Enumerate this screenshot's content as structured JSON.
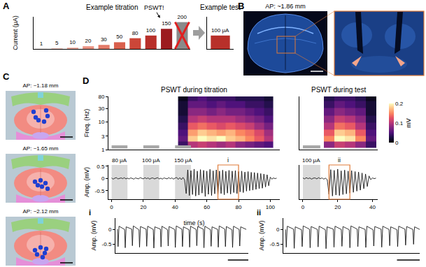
{
  "panel_letters": [
    "A",
    "B",
    "C",
    "D"
  ],
  "chart_data": [
    {
      "type": "bar",
      "title": "Example titration",
      "ylabel": "Current (μA)",
      "categories": [
        null,
        null,
        null,
        null,
        null,
        null,
        null,
        null,
        null,
        null
      ],
      "values": [
        1,
        5,
        10,
        20,
        30,
        50,
        80,
        100,
        150,
        200
      ],
      "colors": [
        "#f6d5cf",
        "#f2c2b8",
        "#eeaa9d",
        "#e99181",
        "#e27a68",
        "#d9604d",
        "#cc4638",
        "#b8302a",
        "#9c1b1f",
        "#8a8a8a"
      ],
      "data_labels": true,
      "ylim": [
        0,
        240
      ],
      "yticks": [],
      "tick_labels": false,
      "annotations": [
        {
          "text": "PSWT!",
          "x": 8
        }
      ],
      "excluded": [
        9
      ]
    },
    {
      "type": "bar",
      "title": "Example test",
      "categories": [
        null
      ],
      "values": [
        100
      ],
      "value_labels": [
        "100 μA"
      ],
      "data_labels": true,
      "color": "#b8302a",
      "ylim": [
        0,
        240
      ],
      "yticks": [],
      "tick_labels": false
    },
    {
      "type": "heatmap",
      "title": "PSWT during titration",
      "ylabel": "Freq. (Hz)",
      "log": "y",
      "x": [
        3,
        9,
        15,
        21,
        27,
        33,
        39,
        45,
        51,
        57,
        63,
        69,
        75,
        81,
        87,
        93,
        99,
        105
      ],
      "y": [
        1.5,
        2.5,
        4,
        7,
        12,
        22,
        45,
        70
      ],
      "z": [
        [
          null,
          null,
          null,
          null,
          null,
          null,
          null,
          0.04,
          0.1,
          0.11,
          0.1,
          0.09,
          0.1,
          0.08,
          0.07,
          0.06,
          0.05,
          null
        ],
        [
          null,
          null,
          null,
          null,
          null,
          null,
          null,
          0.06,
          0.18,
          0.2,
          0.19,
          0.2,
          0.18,
          0.17,
          0.15,
          0.13,
          0.1,
          null
        ],
        [
          null,
          null,
          null,
          null,
          null,
          null,
          null,
          0.05,
          0.16,
          0.18,
          0.17,
          0.16,
          0.17,
          0.15,
          0.14,
          0.12,
          0.09,
          null
        ],
        [
          null,
          null,
          null,
          null,
          null,
          null,
          null,
          0.04,
          0.13,
          0.14,
          0.13,
          0.12,
          0.13,
          0.12,
          0.11,
          0.09,
          0.07,
          null
        ],
        [
          null,
          null,
          null,
          null,
          null,
          null,
          null,
          0.03,
          0.1,
          0.11,
          0.1,
          0.1,
          0.1,
          0.09,
          0.08,
          0.07,
          0.05,
          null
        ],
        [
          null,
          null,
          null,
          null,
          null,
          null,
          null,
          0.02,
          0.08,
          0.08,
          0.07,
          0.08,
          0.07,
          0.07,
          0.06,
          0.05,
          0.04,
          null
        ],
        [
          null,
          null,
          null,
          null,
          null,
          null,
          null,
          0.02,
          0.06,
          0.06,
          0.05,
          0.06,
          0.05,
          0.05,
          0.04,
          0.04,
          0.03,
          null
        ],
        [
          null,
          null,
          null,
          null,
          null,
          null,
          null,
          0.01,
          0.04,
          0.05,
          0.04,
          0.04,
          0.04,
          0.03,
          0.03,
          0.03,
          0.02,
          null
        ]
      ],
      "zlim": [
        0,
        0.2
      ],
      "xlim": [
        -2,
        106
      ],
      "xticks": [],
      "ylim": [
        1,
        80
      ],
      "yticks": [
        1,
        3,
        10,
        30,
        80
      ],
      "tick_labels": "y"
    },
    {
      "type": "heatmap",
      "title": "PSWT during test",
      "log": "y",
      "x": [
        3,
        9,
        15,
        21,
        27,
        33,
        39
      ],
      "y": [
        1.5,
        2.5,
        4,
        7,
        12,
        22,
        45,
        70
      ],
      "z": [
        [
          null,
          null,
          0.08,
          0.11,
          0.1,
          0.08,
          0.04
        ],
        [
          null,
          null,
          0.15,
          0.2,
          0.19,
          0.15,
          0.06
        ],
        [
          null,
          null,
          0.13,
          0.18,
          0.17,
          0.13,
          0.05
        ],
        [
          null,
          null,
          0.1,
          0.14,
          0.13,
          0.1,
          0.04
        ],
        [
          null,
          null,
          0.08,
          0.11,
          0.1,
          0.08,
          0.03
        ],
        [
          null,
          null,
          0.06,
          0.08,
          0.07,
          0.06,
          0.02
        ],
        [
          null,
          null,
          0.04,
          0.06,
          0.05,
          0.04,
          0.02
        ],
        [
          null,
          null,
          0.03,
          0.04,
          0.04,
          0.03,
          0.01
        ]
      ],
      "colorbar": {
        "title": "mV",
        "range": [
          0,
          0.2
        ],
        "ticks": [
          0,
          0.1,
          0.2
        ]
      },
      "xlim": [
        -2,
        43
      ],
      "xticks": [],
      "ylim": [
        1,
        80
      ],
      "yticks": [],
      "tick_labels": false
    },
    {
      "type": "line",
      "xlabel": "time (s)",
      "ylabel": "Amp. (mV)",
      "color": "#000000",
      "x": [
        0,
        1,
        2,
        3,
        4,
        5,
        6,
        7,
        8,
        9,
        10,
        11,
        12,
        13,
        14,
        15,
        16,
        17,
        18,
        19,
        20,
        21,
        22,
        23,
        24,
        25,
        26,
        27,
        28,
        29,
        30,
        31,
        32,
        33,
        34,
        35,
        36,
        37,
        38,
        39,
        40,
        41,
        42,
        43,
        44,
        45,
        46,
        47,
        48,
        49,
        50,
        51,
        52,
        53,
        54,
        55,
        56,
        57,
        58,
        59,
        60,
        61,
        62,
        63,
        64,
        65,
        66,
        67,
        68,
        69,
        70,
        71,
        72,
        73,
        74,
        75,
        76,
        77,
        78,
        79,
        80,
        81,
        82,
        83,
        84,
        85,
        86,
        87,
        88,
        89,
        90,
        91,
        92,
        93,
        94,
        95,
        96,
        97,
        98,
        99,
        100,
        101,
        102,
        103,
        104
      ],
      "values": [
        0.02,
        -0.03,
        0.01,
        0.03,
        -0.02,
        0.0,
        0.02,
        -0.01,
        0.03,
        -0.02,
        0.01,
        -0.02,
        0.02,
        0.0,
        -0.03,
        0.02,
        0.01,
        -0.02,
        0.03,
        0.0,
        -0.02,
        0.03,
        -0.01,
        0.02,
        -0.03,
        0.01,
        0.02,
        -0.02,
        0.0,
        0.03,
        -0.02,
        0.01,
        -0.03,
        0.02,
        0.0,
        -0.02,
        0.03,
        -0.01,
        0.02,
        -0.03,
        0.01,
        0.04,
        -0.04,
        0.03,
        -0.05,
        0.04,
        -0.06,
        -0.62,
        0.35,
        -0.7,
        0.32,
        -0.66,
        0.38,
        -0.72,
        0.3,
        -0.68,
        0.36,
        -0.6,
        0.33,
        -0.74,
        0.3,
        -0.65,
        0.37,
        -0.7,
        0.31,
        -0.63,
        0.35,
        -0.69,
        0.3,
        -0.62,
        0.34,
        -0.67,
        0.29,
        -0.6,
        0.33,
        -0.64,
        0.3,
        -0.58,
        0.32,
        -0.62,
        0.28,
        -0.55,
        0.3,
        -0.58,
        0.26,
        -0.52,
        0.28,
        -0.5,
        0.25,
        -0.48,
        0.24,
        -0.45,
        0.22,
        -0.42,
        0.2,
        -0.4,
        0.18,
        -0.35,
        0.15,
        -0.3,
        0.05,
        -0.03,
        0.02,
        -0.01,
        0.01
      ],
      "xlim": [
        -2,
        106
      ],
      "xticks": [
        0,
        20,
        40,
        60,
        80,
        100
      ],
      "ylim": [
        -0.85,
        0.55
      ],
      "yticks": [
        -0.5,
        0,
        0.5
      ],
      "stim": [
        {
          "x": [
            0,
            10
          ],
          "label": "80 μA"
        },
        {
          "x": [
            20,
            30
          ],
          "label": "100 μA"
        },
        {
          "x": [
            40,
            50
          ],
          "label": "150 μA"
        }
      ]
    },
    {
      "type": "line",
      "color": "#000000",
      "x": [
        0,
        1,
        2,
        3,
        4,
        5,
        6,
        7,
        8,
        9,
        10,
        11,
        12,
        13,
        14,
        15,
        16,
        17,
        18,
        19,
        20,
        21,
        22,
        23,
        24,
        25,
        26,
        27,
        28,
        29,
        30,
        31,
        32,
        33,
        34,
        35,
        36,
        37,
        38,
        39,
        40,
        41,
        42
      ],
      "values": [
        0.02,
        -0.02,
        0.03,
        -0.01,
        0.02,
        -0.03,
        0.01,
        0.02,
        -0.02,
        0.03,
        -0.01,
        0.02,
        -0.03,
        0.01,
        -0.05,
        -0.65,
        0.36,
        -0.72,
        0.33,
        -0.68,
        0.38,
        -0.7,
        0.31,
        -0.66,
        0.34,
        -0.63,
        0.3,
        -0.6,
        0.32,
        -0.57,
        0.28,
        -0.52,
        0.26,
        -0.48,
        0.22,
        -0.42,
        0.18,
        -0.33,
        0.1,
        -0.05,
        0.02,
        -0.01,
        0.01
      ],
      "xlim": [
        -2,
        43
      ],
      "xticks": [
        0,
        20,
        40
      ],
      "ylim": [
        -0.85,
        0.55
      ],
      "yticks": [],
      "tick_labels": "x",
      "stim": [
        {
          "x": [
            0,
            10
          ],
          "label": "100 μA"
        }
      ]
    },
    {
      "type": "line",
      "title": "i",
      "ylabel": "Amp. (mV)",
      "color": "#000000",
      "x": [
        67.2,
        67.26,
        67.35,
        67.9,
        67.96,
        68.05,
        68.6,
        68.66,
        68.75,
        69.3,
        69.36,
        69.45,
        70.0,
        70.06,
        70.15,
        70.7,
        70.76,
        70.85,
        71.4,
        71.46,
        71.55,
        72.1,
        72.16,
        72.25,
        72.8,
        72.86,
        72.95,
        73.5,
        73.56,
        73.65,
        74.2,
        74.26,
        74.35,
        74.9,
        74.96,
        75.05,
        75.6,
        75.66,
        75.75,
        76.3,
        76.36,
        76.45,
        77.0,
        77.06,
        77.15,
        77.7,
        77.76,
        77.85,
        78.4,
        78.46,
        78.55,
        79.1,
        79.16,
        79.25,
        79.8
      ],
      "values": [
        0.02,
        -0.58,
        0.12,
        0.01,
        -0.62,
        0.1,
        0.02,
        -0.55,
        0.13,
        0.0,
        -0.6,
        0.11,
        0.02,
        -0.57,
        0.12,
        0.01,
        -0.63,
        0.1,
        0.02,
        -0.59,
        0.12,
        0.0,
        -0.56,
        0.11,
        0.01,
        -0.61,
        0.13,
        0.02,
        -0.58,
        0.1,
        0.0,
        -0.6,
        0.12,
        0.01,
        -0.55,
        0.11,
        0.02,
        -0.62,
        0.12,
        0.0,
        -0.57,
        0.1,
        0.01,
        -0.6,
        0.13,
        0.02,
        -0.58,
        0.11,
        0.0,
        -0.61,
        0.12,
        0.01,
        -0.56,
        0.1,
        0.01
      ],
      "xlim": [
        67,
        80
      ],
      "xticks": [],
      "ylim": [
        -0.8,
        0.4
      ],
      "yticks": [
        -0.5,
        0
      ],
      "tick_labels": "y",
      "scale_bar": 2
    },
    {
      "type": "line",
      "title": "ii",
      "ylabel": "Amp. (mV)",
      "color": "#000000",
      "x": [
        15.2,
        15.26,
        15.35,
        15.9,
        15.96,
        16.05,
        16.6,
        16.66,
        16.75,
        17.3,
        17.36,
        17.45,
        18.0,
        18.06,
        18.15,
        18.7,
        18.76,
        18.85,
        19.4,
        19.46,
        19.55,
        20.1,
        20.16,
        20.25,
        20.8,
        20.86,
        20.95,
        21.5,
        21.56,
        21.65,
        22.2,
        22.26,
        22.35,
        22.9,
        22.96,
        23.05,
        23.6,
        23.66,
        23.75,
        24.3,
        24.36,
        24.45,
        25.0,
        25.06,
        25.15,
        25.7,
        25.76,
        25.85,
        26.4,
        26.46,
        26.55,
        27.0
      ],
      "values": [
        0.01,
        -0.6,
        0.12,
        0.02,
        -0.64,
        0.1,
        0.0,
        -0.58,
        0.13,
        0.02,
        -0.62,
        0.11,
        0.01,
        -0.59,
        0.12,
        0.0,
        -0.65,
        0.1,
        0.02,
        -0.6,
        0.12,
        0.01,
        -0.57,
        0.11,
        0.0,
        -0.62,
        0.13,
        0.02,
        -0.58,
        0.1,
        0.01,
        -0.61,
        0.12,
        0.0,
        -0.56,
        0.11,
        0.02,
        -0.6,
        0.12,
        0.01,
        -0.55,
        0.1,
        0.0,
        -0.58,
        0.12,
        0.02,
        -0.53,
        0.11,
        0.01,
        -0.5,
        0.1,
        0.01
      ],
      "xlim": [
        15,
        27
      ],
      "xticks": [],
      "ylim": [
        -0.8,
        0.4
      ],
      "yticks": [
        -0.5,
        0
      ],
      "tick_labels": "y",
      "scale_bar": 2
    }
  ],
  "histology": {
    "title": "AP: ~1.86 mm"
  },
  "atlas": [
    {
      "title": "AP: ~1.18 mm",
      "sites": [
        [
          40,
          30
        ],
        [
          43,
          38
        ],
        [
          47,
          42
        ],
        [
          58,
          28
        ],
        [
          60,
          36
        ],
        [
          55,
          44
        ]
      ]
    },
    {
      "title": "AP: ~1.65 mm",
      "sites": [
        [
          42,
          40
        ],
        [
          46,
          45
        ],
        [
          52,
          47
        ],
        [
          57,
          42
        ],
        [
          50,
          38
        ],
        [
          60,
          50
        ]
      ]
    },
    {
      "title": "AP: ~2.12 mm",
      "sites": [
        [
          42,
          48
        ],
        [
          45,
          54
        ],
        [
          56,
          52
        ],
        [
          58,
          46
        ],
        [
          50,
          44
        ],
        [
          53,
          58
        ]
      ]
    }
  ]
}
